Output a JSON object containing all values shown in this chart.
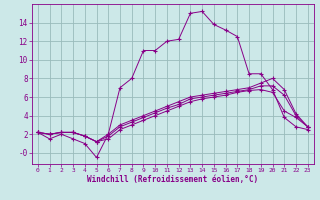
{
  "xlabel": "Windchill (Refroidissement éolien,°C)",
  "background_color": "#cce8e8",
  "line_color": "#880088",
  "grid_color": "#99bbbb",
  "x_ticks": [
    0,
    1,
    2,
    3,
    4,
    5,
    6,
    7,
    8,
    9,
    10,
    11,
    12,
    13,
    14,
    15,
    16,
    17,
    18,
    19,
    20,
    21,
    22,
    23
  ],
  "y_ticks": [
    0,
    2,
    4,
    6,
    8,
    10,
    12,
    14
  ],
  "y_tick_labels": [
    "-0",
    "2",
    "4",
    "6",
    "8",
    "10",
    "12",
    "14"
  ],
  "ylim": [
    -1.2,
    16.0
  ],
  "xlim": [
    -0.5,
    23.5
  ],
  "series": [
    [
      2.2,
      1.5,
      2.0,
      1.5,
      1.0,
      -0.5,
      2.0,
      7.0,
      8.0,
      11.0,
      11.0,
      12.0,
      12.2,
      15.0,
      15.2,
      13.8,
      13.2,
      12.5,
      8.5,
      8.5,
      6.8,
      3.8,
      2.8,
      2.5
    ],
    [
      2.2,
      2.0,
      2.2,
      2.2,
      1.8,
      1.2,
      1.5,
      2.5,
      3.0,
      3.5,
      4.0,
      4.5,
      5.0,
      5.5,
      5.8,
      6.0,
      6.2,
      6.5,
      6.7,
      6.8,
      6.5,
      4.5,
      3.8,
      2.8
    ],
    [
      2.2,
      2.0,
      2.2,
      2.2,
      1.8,
      1.2,
      1.8,
      2.8,
      3.3,
      3.8,
      4.3,
      4.8,
      5.2,
      5.8,
      6.0,
      6.2,
      6.4,
      6.6,
      6.8,
      7.2,
      7.2,
      6.2,
      4.0,
      2.8
    ],
    [
      2.2,
      2.0,
      2.2,
      2.2,
      1.8,
      1.2,
      2.0,
      3.0,
      3.5,
      4.0,
      4.5,
      5.0,
      5.5,
      6.0,
      6.2,
      6.4,
      6.6,
      6.8,
      7.0,
      7.5,
      8.0,
      6.8,
      4.2,
      2.8
    ]
  ]
}
